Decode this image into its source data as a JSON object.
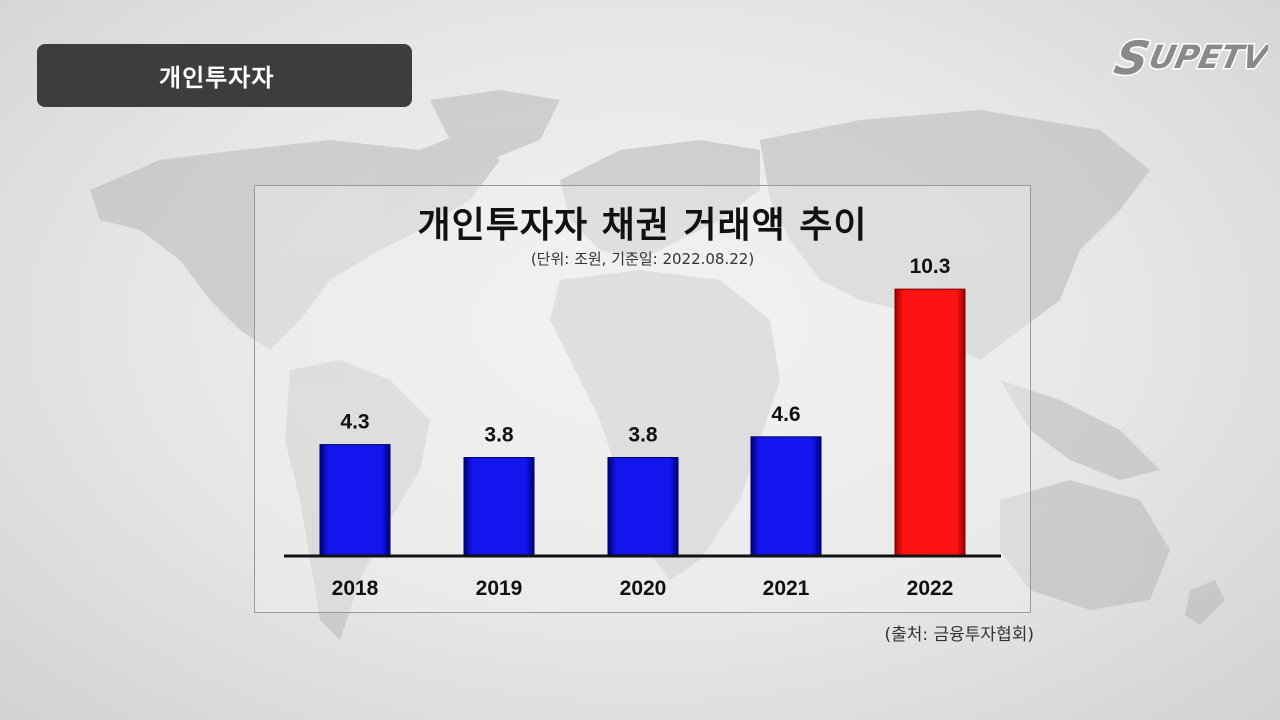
{
  "header": {
    "tag_label": "개인투자자"
  },
  "brand": {
    "logo_text": "SUPETV"
  },
  "chart_data": {
    "type": "bar",
    "title": "개인투자자 채권 거래액 추이",
    "subtitle": "(단위: 조원,  기준일: 2022.08.22)",
    "categories": [
      "2018",
      "2019",
      "2020",
      "2021",
      "2022"
    ],
    "values": [
      4.3,
      3.8,
      3.8,
      4.6,
      10.3
    ],
    "value_labels": [
      "4.3",
      "3.8",
      "3.8",
      "4.6",
      "10.3"
    ],
    "bar_colors": [
      "#1010e0",
      "#1010e0",
      "#1010e0",
      "#1010e0",
      "#ff1010"
    ],
    "ylim": [
      0,
      11
    ],
    "grid": false,
    "source": "(출처: 금융투자협회)"
  }
}
